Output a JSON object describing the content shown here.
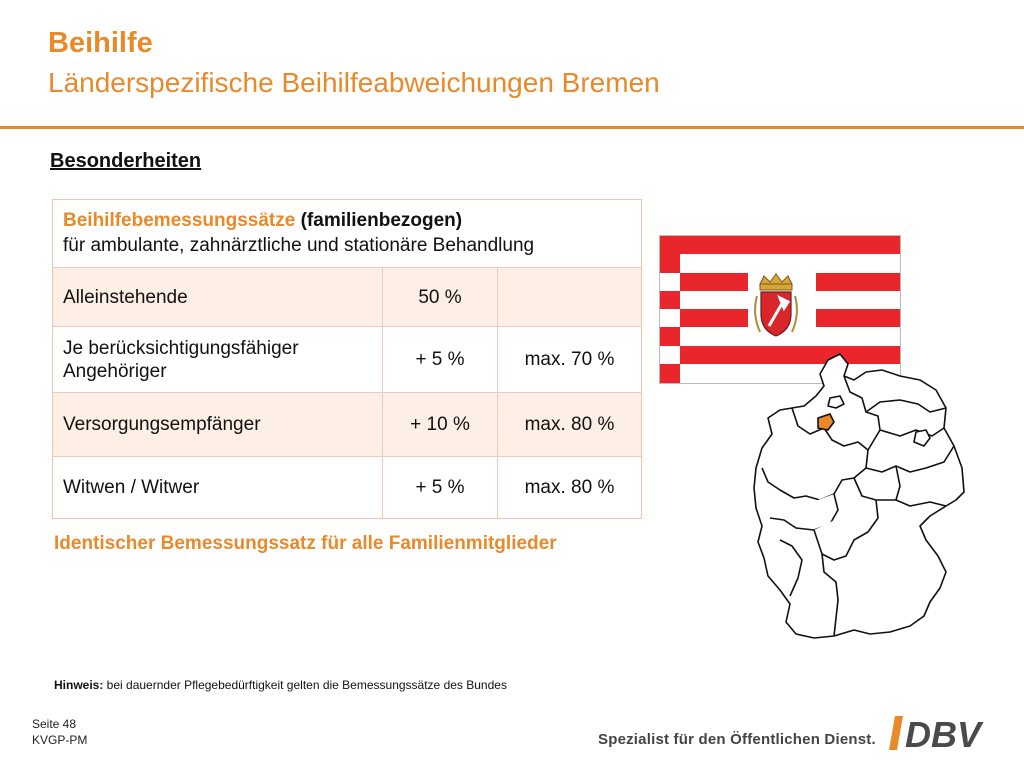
{
  "header": {
    "title": "Beihilfe",
    "subtitle": "Länderspezifische Beihilfeabweichungen Bremen"
  },
  "section": {
    "heading": "Besonderheiten"
  },
  "table": {
    "head_highlight": "Beihilfebemessungssätze",
    "head_rest": " (familienbezogen)",
    "head_line2": "für ambulante, zahnärztliche und stationäre Behandlung",
    "rows": [
      {
        "label": "Alleinstehende",
        "rate": "50 %",
        "max": ""
      },
      {
        "label": "Je berücksichtigungsfähiger Angehöriger",
        "rate": "+ 5 %",
        "max": "max. 70 %"
      },
      {
        "label": "Versorgungsempfänger",
        "rate": "+ 10 %",
        "max": "max. 80 %"
      },
      {
        "label": "Witwen / Witwer",
        "rate": "+ 5 %",
        "max": "max. 80 %"
      }
    ]
  },
  "note": "Identischer Bemessungssatz für alle Familienmitglieder",
  "hint": {
    "label": "Hinweis:",
    "text": " bei dauernder Pflegebedürftigkeit gelten die Bemessungssätze des Bundes"
  },
  "footer": {
    "page": "Seite 48",
    "code": "KVGP-PM",
    "tagline": "Spezialist für den Öffentlichen Dienst.",
    "logo_text": "DBV"
  },
  "colors": {
    "accent": "#e8892a",
    "flag_red": "#e8262b",
    "bremen_fill": "#e8892a",
    "table_fill": "#fdeee6"
  }
}
